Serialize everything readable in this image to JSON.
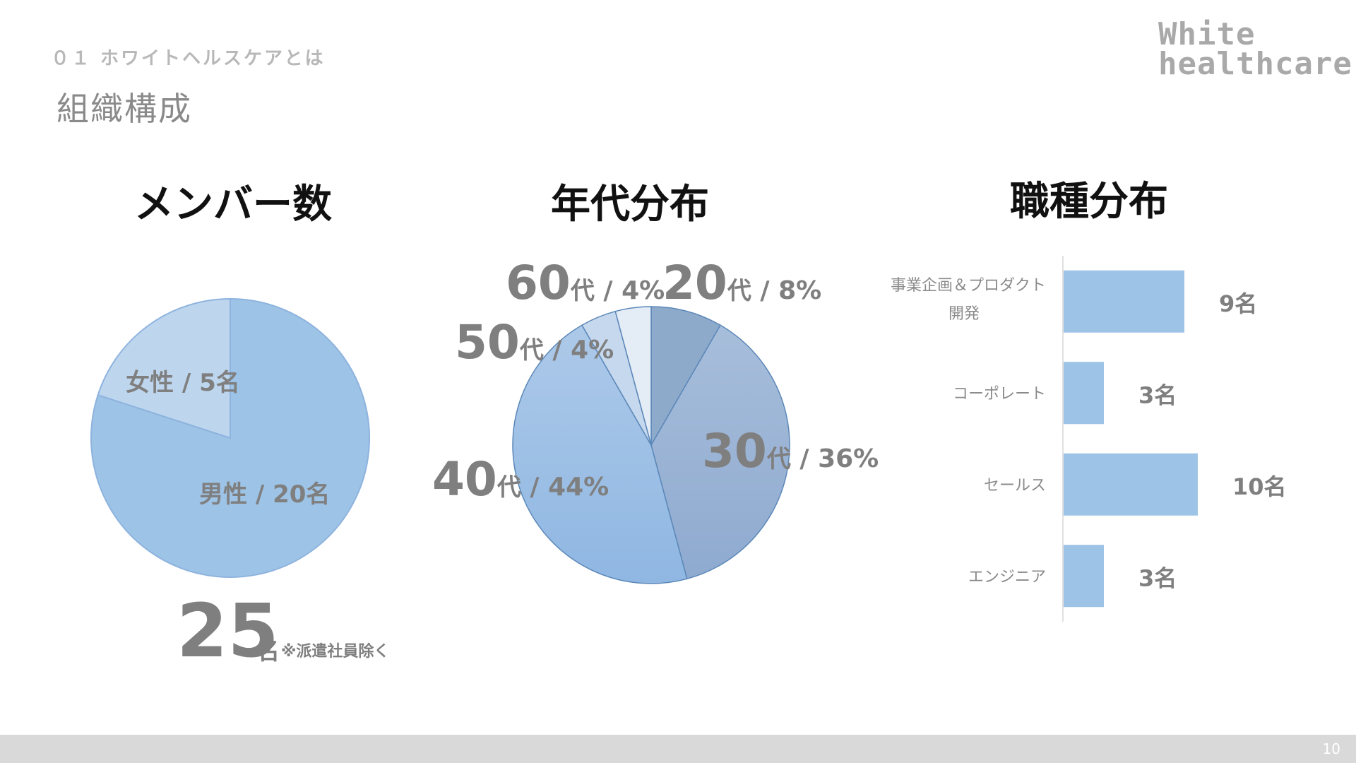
{
  "header": {
    "section_label": "０１ ホワイトヘルスケアとは",
    "page_title": "組織構成",
    "logo_line1": "White",
    "logo_line2": "healthcare"
  },
  "colors": {
    "female": "#bdd6ee",
    "male": "#9dc3e6",
    "bar": "#9dc3e6",
    "age20": "#8eaacb",
    "age30a": "#a7bedb",
    "age30b": "#8faad0",
    "age40a": "#adc9e9",
    "age40b": "#8fb7e2",
    "age50": "#c6d8ee",
    "age60": "#e4ecf6"
  },
  "members": {
    "title": "メンバー数",
    "total_value": "25",
    "total_unit": "名",
    "total_note": "※派遣社員除く"
  },
  "ages": {
    "title": "年代分布"
  },
  "roles": {
    "title": "職種分布"
  },
  "chart_data": [
    {
      "type": "pie",
      "title": "メンバー数",
      "slices": [
        {
          "label": "女性",
          "value": 5,
          "display": "女性 / 5名"
        },
        {
          "label": "男性",
          "value": 20,
          "display": "男性 / 20名"
        }
      ]
    },
    {
      "type": "pie",
      "title": "年代分布",
      "slices": [
        {
          "label": "20代",
          "num": "20",
          "unit": "代",
          "pct_text": " / 8%",
          "value": 8
        },
        {
          "label": "30代",
          "num": "30",
          "unit": "代",
          "pct_text": " / 36%",
          "value": 36
        },
        {
          "label": "40代",
          "num": "40",
          "unit": "代",
          "pct_text": " / 44%",
          "value": 44
        },
        {
          "label": "50代",
          "num": "50",
          "unit": "代",
          "pct_text": " / 4%",
          "value": 4
        },
        {
          "label": "60代",
          "num": "60",
          "unit": "代",
          "pct_text": " / 4%",
          "value": 4
        }
      ]
    },
    {
      "type": "bar",
      "orientation": "horizontal",
      "title": "職種分布",
      "categories": [
        [
          "事業企画＆プロダクト",
          "開発"
        ],
        [
          "コーポレート"
        ],
        [
          "セールス"
        ],
        [
          "エンジニア"
        ]
      ],
      "values": [
        9,
        3,
        10,
        3
      ],
      "value_labels": [
        "9名",
        "3名",
        "10名",
        "3名"
      ],
      "xlim": [
        0,
        10
      ]
    }
  ],
  "footer": {
    "page_number": "10"
  }
}
